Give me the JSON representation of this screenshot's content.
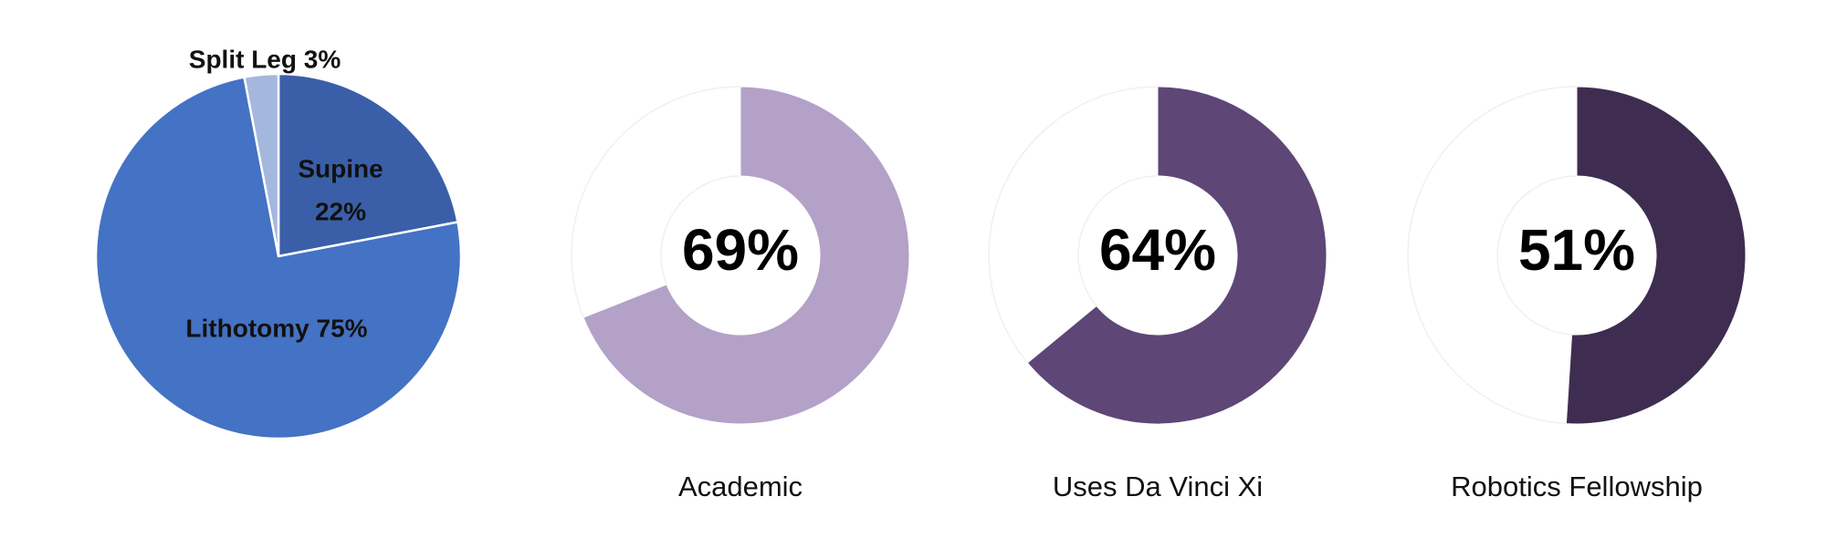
{
  "chart_data": [
    {
      "type": "pie",
      "slices": [
        {
          "name": "Supine",
          "value": 22,
          "label_lines": [
            "Supine",
            "22%"
          ],
          "color": "#3A5FA8"
        },
        {
          "name": "Lithotomy",
          "value": 75,
          "label_lines": [
            "Lithotomy 75%"
          ],
          "color": "#4472C4"
        },
        {
          "name": "Split Leg",
          "value": 3,
          "label_lines": [
            "Split Leg 3%"
          ],
          "color": "#A4B8DE"
        }
      ]
    },
    {
      "type": "pie",
      "variant": "donut",
      "name": "Academic",
      "value": 69,
      "value_label": "69%",
      "color": "#B3A1C8"
    },
    {
      "type": "pie",
      "variant": "donut",
      "name": "Uses Da Vinci Xi",
      "value": 64,
      "value_label": "64%",
      "color": "#5E4677"
    },
    {
      "type": "pie",
      "variant": "donut",
      "name": "Robotics Fellowship",
      "value": 51,
      "value_label": "51%",
      "color": "#3E2D50"
    }
  ]
}
